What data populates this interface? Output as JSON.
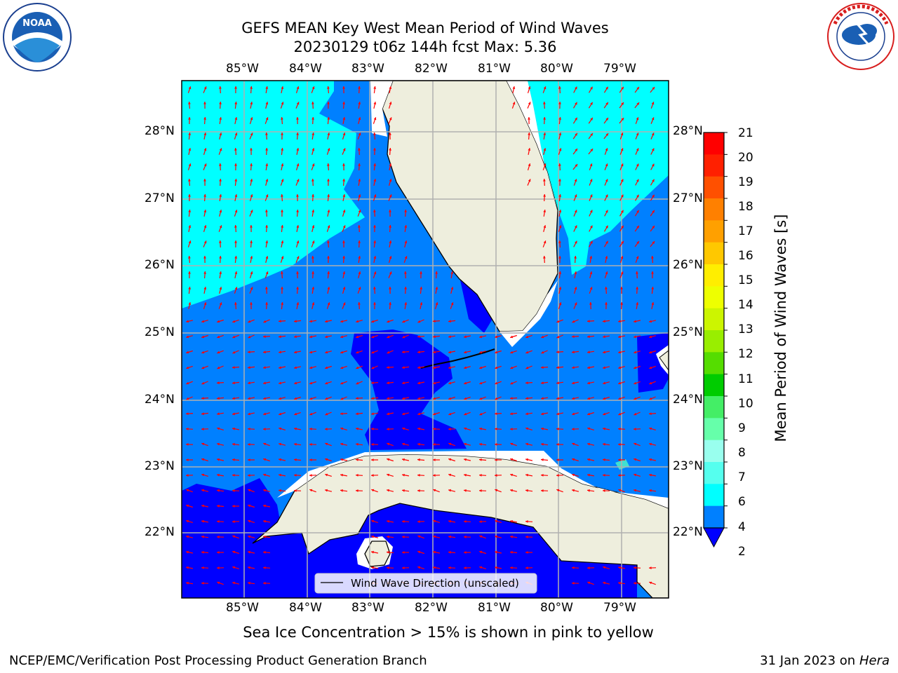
{
  "header": {
    "title_line1": "GEFS MEAN Key West Mean Period of Wind Waves",
    "title_line2": "20230129 t06z 144h fcst   Max: 5.36"
  },
  "logos": {
    "noaa_text": "NOAA",
    "noaa_ring": "NATIONAL OCEANIC AND ATMOSPHERIC ADMINISTRATION · U.S. DEPARTMENT OF COMMERCE",
    "nws_ring": "NATIONAL WEATHER SERVICE"
  },
  "map": {
    "lon_labels": [
      "85°W",
      "84°W",
      "83°W",
      "82°W",
      "81°W",
      "80°W",
      "79°W"
    ],
    "lat_labels": [
      "28°N",
      "27°N",
      "26°N",
      "25°N",
      "24°N",
      "23°N",
      "22°N"
    ],
    "legend_label": "Wind Wave Direction (unscaled)",
    "colors": {
      "band_2_4": "#0080ff",
      "band_4_6": "#00ffff",
      "below_2": "#0000ff",
      "land": "#eeeedd",
      "arrow": "#ff0000"
    }
  },
  "colorbar": {
    "label": "Mean Period of Wind Waves [s]",
    "ticks": [
      "21",
      "20",
      "19",
      "18",
      "17",
      "16",
      "15",
      "14",
      "13",
      "12",
      "11",
      "10",
      "9",
      "8",
      "7",
      "6",
      "4",
      "2"
    ],
    "colors": [
      "#ff0000",
      "#ff2000",
      "#ff5000",
      "#ff8000",
      "#ffa000",
      "#ffc800",
      "#ffee00",
      "#eeff00",
      "#ccf500",
      "#99ee00",
      "#55dd00",
      "#00cc00",
      "#44ee66",
      "#66ffaa",
      "#99ffee",
      "#55ffee",
      "#00ffff",
      "#0080ff"
    ],
    "extend_color": "#0000ff"
  },
  "notes": {
    "sea_ice": "Sea Ice Concentration > 15% is shown in pink to yellow"
  },
  "footer": {
    "left": "NCEP/EMC/Verification Post Processing Product Generation Branch",
    "right_prefix": "31 Jan 2023 on ",
    "right_machine": "Hera"
  }
}
